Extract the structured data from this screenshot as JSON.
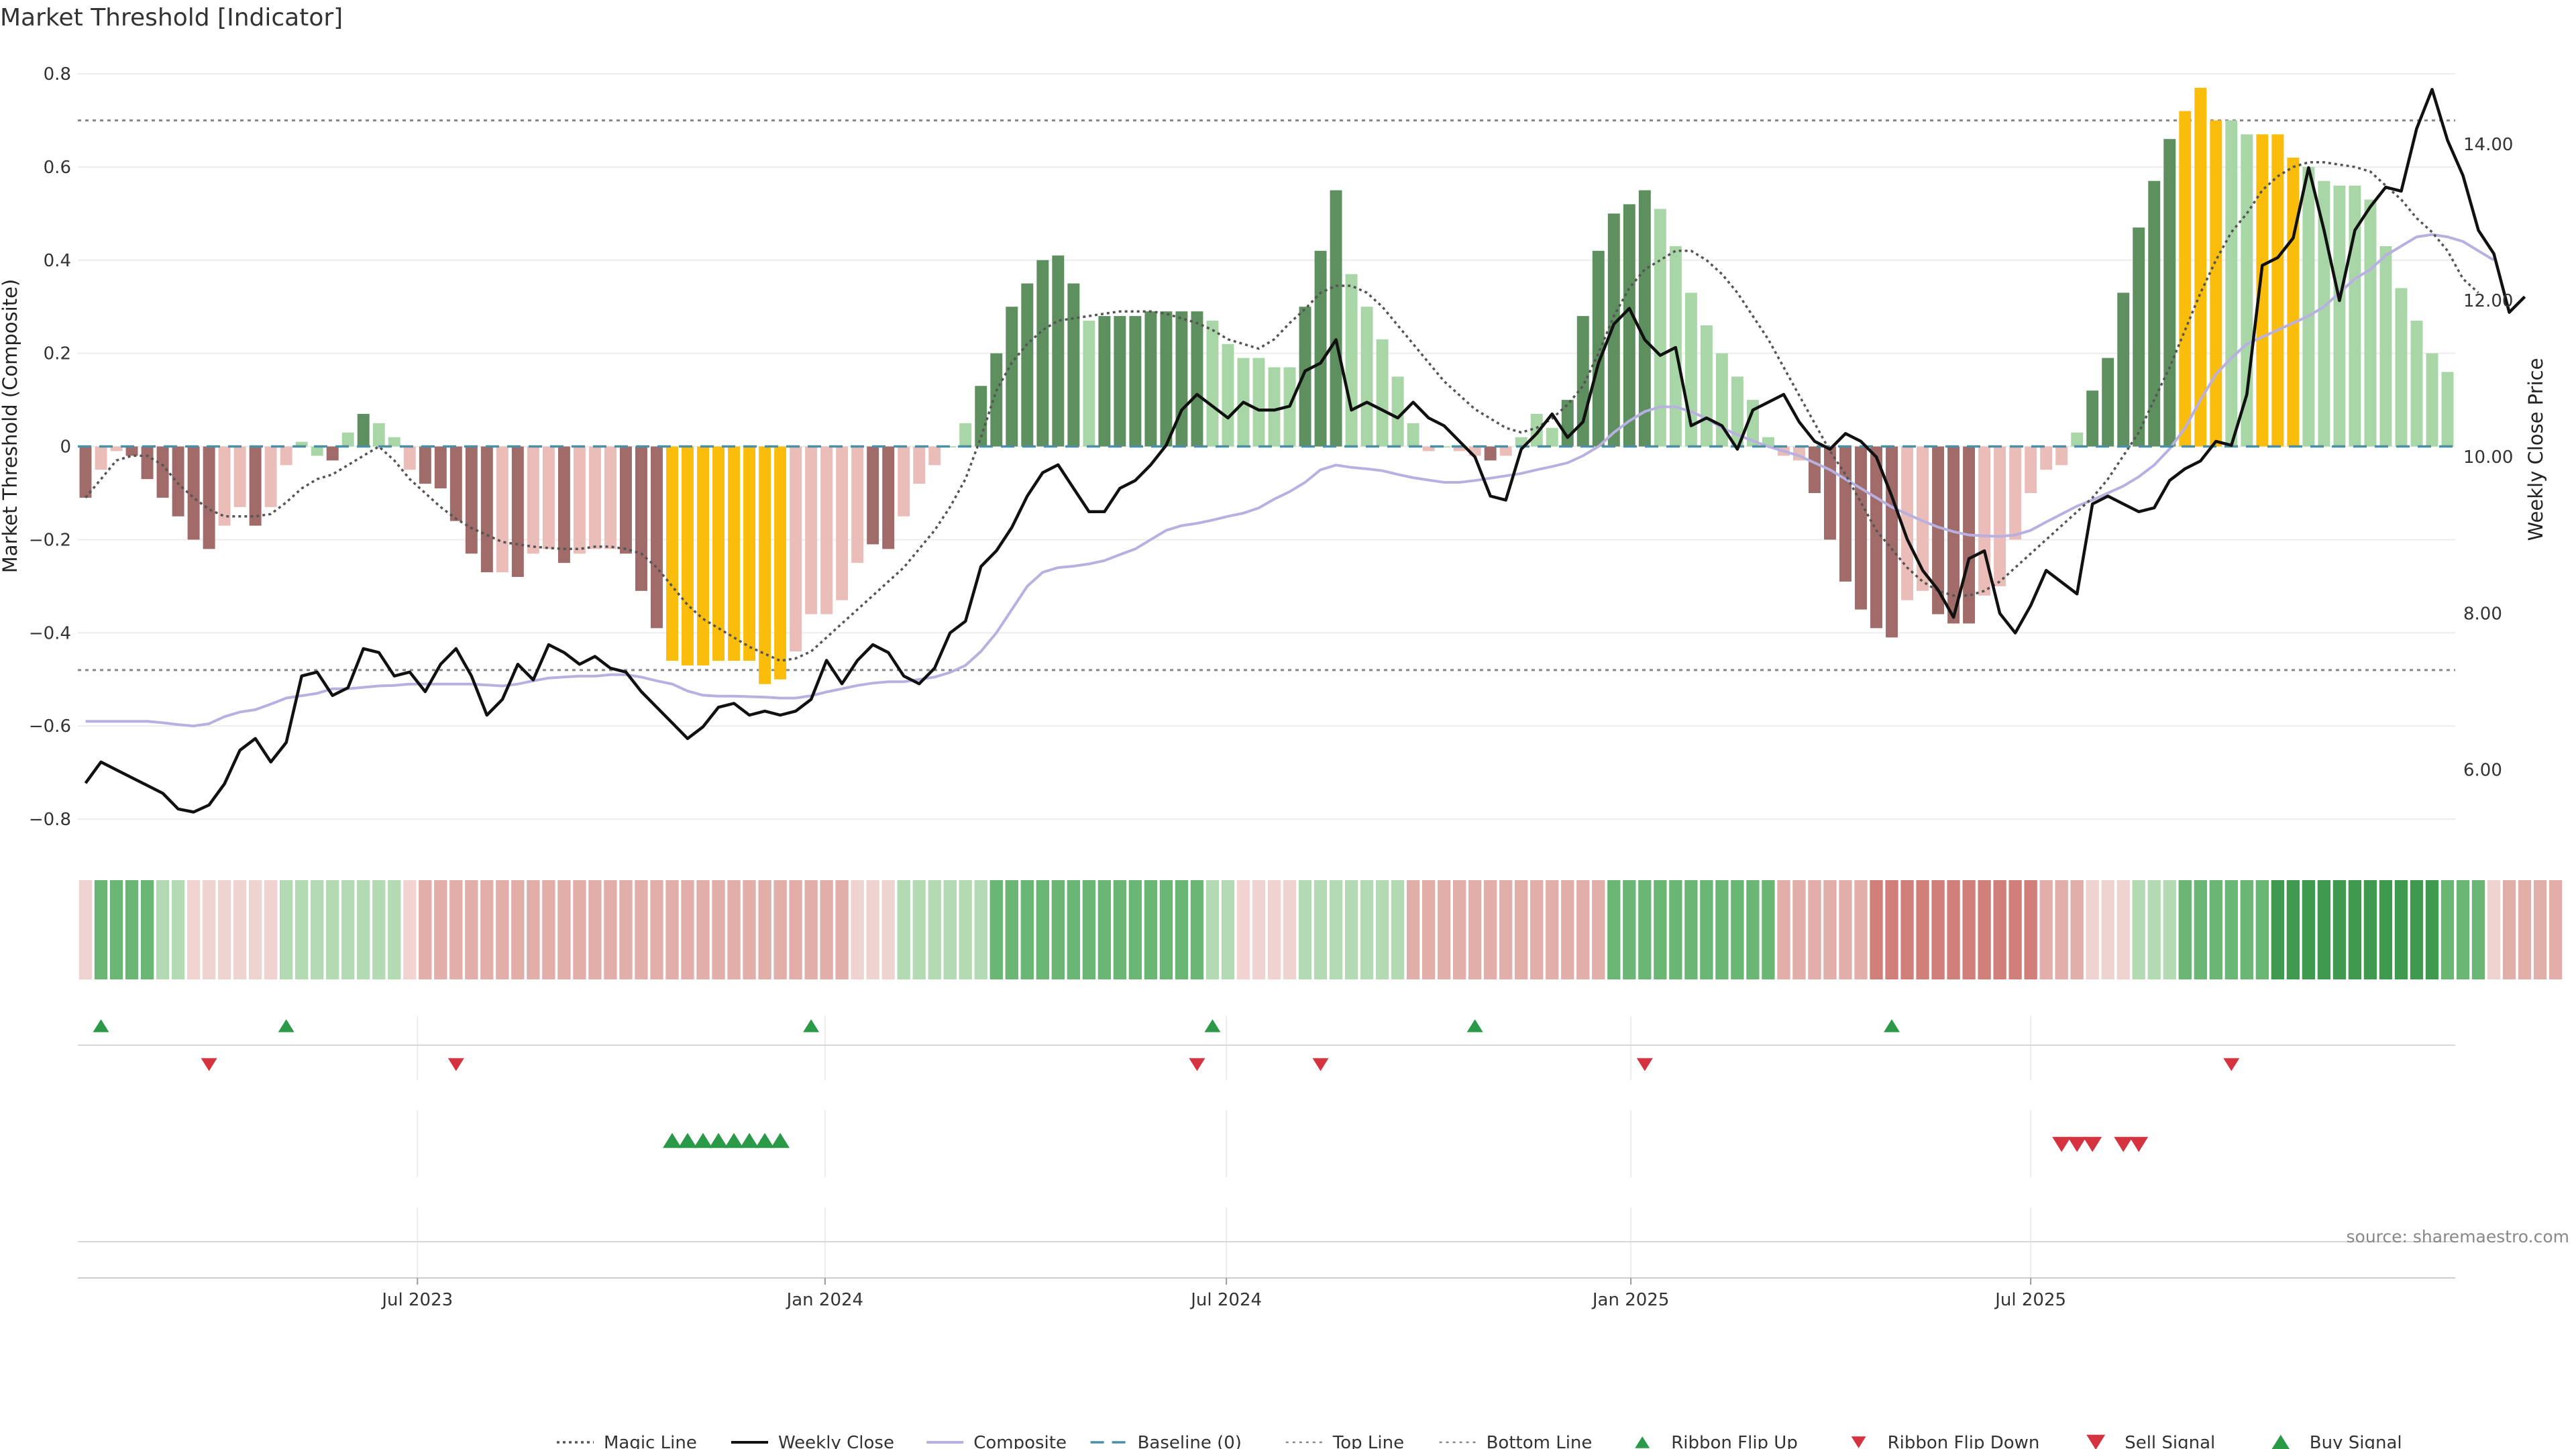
{
  "colors": {
    "strong_green": "#5e8f5e",
    "light_green": "#a9d6a6",
    "strong_red": "#a06b68",
    "light_red": "#ebbdb8",
    "extreme": "#fbbd0b",
    "weekly_close": "#111111",
    "composite": "#b7b0e0",
    "magic": "#555555",
    "baseline": "#4a8fa4",
    "threshold": "#888888",
    "buy": "#2a9a48",
    "sell": "#d63341",
    "grid": "#ececec",
    "text": "#333333",
    "source": "#888888"
  },
  "chart_data": {
    "type": "bar",
    "title": "Market Threshold [Indicator]",
    "ylabel": "Market Threshold (Composite)",
    "y2label": "Weekly Close Price",
    "ylim": [
      -0.82,
      0.8
    ],
    "yticks": [
      0.8,
      0.6,
      0.4,
      0.2,
      0,
      -0.2,
      -0.4,
      -0.6,
      -0.8
    ],
    "ytick_labels": [
      "0.8",
      "0.6",
      "0.4",
      "0.2",
      "0",
      "−0.2",
      "−0.4",
      "−0.6",
      "−0.8"
    ],
    "y2lim": [
      5.25,
      14.9
    ],
    "y2ticks": [
      6,
      8,
      10,
      12,
      14
    ],
    "y2tick_labels": [
      "6.00",
      "8.00",
      "10.00",
      "12.00",
      "14.00"
    ],
    "x_ticks": [
      {
        "week": 21.5,
        "label": "Jul 2023"
      },
      {
        "week": 47.9,
        "label": "Jan 2024"
      },
      {
        "week": 73.9,
        "label": "Jul 2024"
      },
      {
        "week": 100.1,
        "label": "Jan 2025"
      },
      {
        "week": 126.0,
        "label": "Jul 2025"
      }
    ],
    "top_line": 0.7,
    "bottom_line": -0.48,
    "bars": [
      -0.11,
      -0.05,
      -0.01,
      -0.02,
      -0.07,
      -0.11,
      -0.15,
      -0.2,
      -0.22,
      -0.17,
      -0.13,
      -0.17,
      -0.13,
      -0.04,
      0.01,
      -0.02,
      -0.03,
      0.03,
      0.07,
      0.05,
      0.02,
      -0.05,
      -0.08,
      -0.09,
      -0.16,
      -0.23,
      -0.27,
      -0.27,
      -0.28,
      -0.23,
      -0.22,
      -0.25,
      -0.23,
      -0.22,
      -0.22,
      -0.23,
      -0.31,
      -0.39,
      -0.46,
      -0.47,
      -0.47,
      -0.46,
      -0.46,
      -0.46,
      -0.51,
      -0.5,
      -0.44,
      -0.36,
      -0.36,
      -0.33,
      -0.25,
      -0.21,
      -0.22,
      -0.15,
      -0.08,
      -0.04,
      0.0,
      0.05,
      0.13,
      0.2,
      0.3,
      0.35,
      0.4,
      0.41,
      0.35,
      0.27,
      0.28,
      0.28,
      0.28,
      0.29,
      0.29,
      0.29,
      0.29,
      0.27,
      0.22,
      0.19,
      0.19,
      0.17,
      0.17,
      0.3,
      0.42,
      0.55,
      0.37,
      0.3,
      0.23,
      0.15,
      0.05,
      -0.01,
      0.0,
      -0.01,
      -0.02,
      -0.03,
      -0.02,
      0.02,
      0.07,
      0.04,
      0.1,
      0.28,
      0.42,
      0.5,
      0.52,
      0.55,
      0.51,
      0.43,
      0.33,
      0.26,
      0.2,
      0.15,
      0.1,
      0.02,
      -0.02,
      -0.03,
      -0.1,
      -0.2,
      -0.29,
      -0.35,
      -0.39,
      -0.41,
      -0.33,
      -0.31,
      -0.36,
      -0.38,
      -0.38,
      -0.32,
      -0.3,
      -0.2,
      -0.1,
      -0.05,
      -0.04,
      0.03,
      0.12,
      0.19,
      0.33,
      0.47,
      0.57,
      0.66,
      0.72,
      0.77,
      0.7,
      0.7,
      0.67,
      0.67,
      0.67,
      0.62,
      0.6,
      0.57,
      0.56,
      0.56,
      0.53,
      0.43,
      0.34,
      0.27,
      0.2,
      0.16
    ],
    "bar_class": [
      "sr",
      "lr",
      "lr",
      "sr",
      "sr",
      "sr",
      "sr",
      "sr",
      "sr",
      "lr",
      "lr",
      "sr",
      "lr",
      "lr",
      "lg",
      "lg",
      "sr",
      "lg",
      "sg",
      "lg",
      "lg",
      "lr",
      "sr",
      "sr",
      "sr",
      "sr",
      "sr",
      "lr",
      "sr",
      "lr",
      "lr",
      "sr",
      "lr",
      "lr",
      "lr",
      "sr",
      "sr",
      "sr",
      "x",
      "x",
      "x",
      "x",
      "x",
      "x",
      "x",
      "x",
      "lr",
      "lr",
      "lr",
      "lr",
      "lr",
      "sr",
      "sr",
      "lr",
      "lr",
      "lr",
      "lg",
      "lg",
      "sg",
      "sg",
      "sg",
      "sg",
      "sg",
      "sg",
      "sg",
      "lg",
      "sg",
      "sg",
      "sg",
      "sg",
      "sg",
      "sg",
      "sg",
      "lg",
      "lg",
      "lg",
      "lg",
      "lg",
      "lg",
      "sg",
      "sg",
      "sg",
      "lg",
      "lg",
      "lg",
      "lg",
      "lg",
      "lr",
      "lg",
      "lr",
      "lr",
      "sr",
      "lr",
      "lg",
      "lg",
      "lg",
      "sg",
      "sg",
      "sg",
      "sg",
      "sg",
      "sg",
      "lg",
      "lg",
      "lg",
      "lg",
      "lg",
      "lg",
      "lg",
      "lg",
      "lr",
      "lr",
      "sr",
      "sr",
      "sr",
      "sr",
      "sr",
      "sr",
      "lr",
      "lr",
      "sr",
      "sr",
      "sr",
      "lr",
      "lr",
      "lr",
      "lr",
      "lr",
      "lr",
      "lg",
      "sg",
      "sg",
      "sg",
      "sg",
      "sg",
      "sg",
      "x",
      "x",
      "x",
      "lg",
      "lg",
      "x",
      "x",
      "x",
      "lg",
      "lg",
      "lg",
      "lg",
      "lg",
      "lg",
      "lg",
      "lg",
      "lg",
      "lg",
      "lg"
    ],
    "weekly_close": [
      5.83,
      6.1,
      6.0,
      5.9,
      5.8,
      5.7,
      5.5,
      5.46,
      5.55,
      5.82,
      6.25,
      6.4,
      6.1,
      6.35,
      7.2,
      7.25,
      6.95,
      7.05,
      7.55,
      7.5,
      7.2,
      7.25,
      7.0,
      7.35,
      7.55,
      7.2,
      6.7,
      6.9,
      7.35,
      7.15,
      7.6,
      7.5,
      7.35,
      7.45,
      7.3,
      7.25,
      7.0,
      6.8,
      6.6,
      6.4,
      6.55,
      6.8,
      6.85,
      6.7,
      6.75,
      6.7,
      6.75,
      6.9,
      7.4,
      7.1,
      7.4,
      7.6,
      7.5,
      7.2,
      7.1,
      7.3,
      7.75,
      7.9,
      8.6,
      8.8,
      9.1,
      9.5,
      9.8,
      9.9,
      9.6,
      9.3,
      9.3,
      9.6,
      9.7,
      9.9,
      10.15,
      10.6,
      10.8,
      10.65,
      10.5,
      10.7,
      10.6,
      10.6,
      10.65,
      11.1,
      11.2,
      11.5,
      10.6,
      10.7,
      10.6,
      10.5,
      10.7,
      10.5,
      10.4,
      10.2,
      10.0,
      9.5,
      9.45,
      10.1,
      10.3,
      10.55,
      10.25,
      10.45,
      11.2,
      11.7,
      11.9,
      11.5,
      11.3,
      11.4,
      10.4,
      10.5,
      10.4,
      10.1,
      10.6,
      10.7,
      10.8,
      10.45,
      10.2,
      10.1,
      10.3,
      10.2,
      10.0,
      9.5,
      8.95,
      8.55,
      8.3,
      7.95,
      8.7,
      8.8,
      8.0,
      7.75,
      8.1,
      8.55,
      8.4,
      8.25,
      9.4,
      9.5,
      9.4,
      9.3,
      9.35,
      9.7,
      9.85,
      9.95,
      10.2,
      10.15,
      10.8,
      12.45,
      12.55,
      12.8,
      13.7,
      12.9,
      12.0,
      12.9,
      13.2,
      13.45,
      13.4,
      14.2,
      14.7,
      14.05,
      13.6,
      12.9,
      12.6,
      11.85,
      12.05
    ],
    "composite": [
      -0.59,
      -0.59,
      -0.59,
      -0.59,
      -0.59,
      -0.593,
      -0.597,
      -0.6,
      -0.595,
      -0.58,
      -0.57,
      -0.565,
      -0.553,
      -0.54,
      -0.535,
      -0.53,
      -0.52,
      -0.52,
      -0.517,
      -0.514,
      -0.513,
      -0.51,
      -0.51,
      -0.51,
      -0.51,
      -0.51,
      -0.512,
      -0.514,
      -0.51,
      -0.503,
      -0.497,
      -0.495,
      -0.493,
      -0.493,
      -0.49,
      -0.49,
      -0.495,
      -0.503,
      -0.51,
      -0.525,
      -0.534,
      -0.536,
      -0.536,
      -0.537,
      -0.538,
      -0.54,
      -0.54,
      -0.535,
      -0.527,
      -0.52,
      -0.513,
      -0.508,
      -0.505,
      -0.505,
      -0.5,
      -0.495,
      -0.485,
      -0.47,
      -0.44,
      -0.4,
      -0.35,
      -0.3,
      -0.27,
      -0.26,
      -0.257,
      -0.252,
      -0.245,
      -0.232,
      -0.22,
      -0.2,
      -0.18,
      -0.17,
      -0.165,
      -0.158,
      -0.15,
      -0.143,
      -0.132,
      -0.113,
      -0.097,
      -0.077,
      -0.05,
      -0.04,
      -0.045,
      -0.048,
      -0.052,
      -0.06,
      -0.067,
      -0.072,
      -0.077,
      -0.077,
      -0.073,
      -0.068,
      -0.063,
      -0.058,
      -0.05,
      -0.043,
      -0.035,
      -0.02,
      0.0,
      0.03,
      0.055,
      0.075,
      0.085,
      0.085,
      0.075,
      0.06,
      0.04,
      0.025,
      0.012,
      0.0,
      -0.01,
      -0.02,
      -0.035,
      -0.05,
      -0.07,
      -0.09,
      -0.11,
      -0.13,
      -0.145,
      -0.16,
      -0.173,
      -0.183,
      -0.19,
      -0.192,
      -0.193,
      -0.19,
      -0.18,
      -0.162,
      -0.145,
      -0.128,
      -0.115,
      -0.1,
      -0.085,
      -0.065,
      -0.04,
      -0.005,
      0.04,
      0.1,
      0.155,
      0.19,
      0.22,
      0.235,
      0.25,
      0.265,
      0.28,
      0.3,
      0.33,
      0.36,
      0.38,
      0.41,
      0.43,
      0.45,
      0.455,
      0.45,
      0.44,
      0.42,
      0.4
    ],
    "magic": [
      -0.11,
      -0.07,
      -0.03,
      -0.02,
      -0.02,
      -0.04,
      -0.08,
      -0.11,
      -0.135,
      -0.15,
      -0.15,
      -0.15,
      -0.145,
      -0.12,
      -0.09,
      -0.07,
      -0.06,
      -0.04,
      -0.02,
      0.0,
      -0.03,
      -0.07,
      -0.1,
      -0.13,
      -0.155,
      -0.175,
      -0.19,
      -0.205,
      -0.21,
      -0.215,
      -0.218,
      -0.22,
      -0.22,
      -0.215,
      -0.215,
      -0.22,
      -0.23,
      -0.26,
      -0.3,
      -0.34,
      -0.37,
      -0.39,
      -0.41,
      -0.43,
      -0.445,
      -0.46,
      -0.455,
      -0.44,
      -0.41,
      -0.38,
      -0.35,
      -0.32,
      -0.29,
      -0.26,
      -0.22,
      -0.18,
      -0.13,
      -0.07,
      0.02,
      0.12,
      0.18,
      0.22,
      0.25,
      0.27,
      0.275,
      0.28,
      0.285,
      0.29,
      0.29,
      0.29,
      0.285,
      0.275,
      0.265,
      0.25,
      0.23,
      0.22,
      0.21,
      0.23,
      0.265,
      0.295,
      0.33,
      0.345,
      0.345,
      0.33,
      0.3,
      0.26,
      0.22,
      0.18,
      0.14,
      0.11,
      0.08,
      0.06,
      0.04,
      0.03,
      0.04,
      0.06,
      0.09,
      0.13,
      0.2,
      0.28,
      0.34,
      0.38,
      0.4,
      0.42,
      0.42,
      0.4,
      0.37,
      0.33,
      0.28,
      0.23,
      0.17,
      0.11,
      0.05,
      -0.01,
      -0.06,
      -0.12,
      -0.18,
      -0.22,
      -0.26,
      -0.29,
      -0.31,
      -0.32,
      -0.32,
      -0.31,
      -0.29,
      -0.26,
      -0.23,
      -0.2,
      -0.17,
      -0.14,
      -0.11,
      -0.07,
      -0.02,
      0.03,
      0.1,
      0.17,
      0.25,
      0.33,
      0.4,
      0.46,
      0.5,
      0.55,
      0.58,
      0.6,
      0.61,
      0.61,
      0.605,
      0.6,
      0.59,
      0.56,
      0.53,
      0.49,
      0.46,
      0.42,
      0.36,
      0.33
    ],
    "ribbon_levels": [
      -1,
      2,
      2,
      2,
      2,
      1,
      1,
      0,
      -1,
      -1,
      -1,
      -1,
      -1,
      1,
      1,
      1,
      1,
      1,
      1,
      1,
      1,
      0,
      -2,
      -2,
      -2,
      -2,
      -2,
      -2,
      -2,
      -2,
      -2,
      -2,
      -2,
      -2,
      -2,
      -2,
      -2,
      -2,
      -2,
      -2,
      -2,
      -2,
      -2,
      -2,
      -2,
      -2,
      -2,
      -2,
      -2,
      -2,
      -1,
      -1,
      -1,
      1,
      1,
      1,
      1,
      1,
      1,
      2,
      2,
      2,
      2,
      2,
      2,
      2,
      2,
      2,
      2,
      2,
      2,
      2,
      2,
      1,
      1,
      0,
      -1,
      -1,
      -1,
      1,
      1,
      1,
      1,
      1,
      1,
      1,
      -2,
      -2,
      -2,
      -2,
      -2,
      -2,
      -2,
      -2,
      -2,
      -2,
      -2,
      -2,
      -2,
      2,
      2,
      2,
      2,
      2,
      2,
      2,
      2,
      2,
      2,
      2,
      -2,
      -2,
      -2,
      -2,
      -2,
      -2,
      -3,
      -3,
      -3,
      -3,
      -3,
      -3,
      -3,
      -3,
      -3,
      -3,
      -3,
      -2,
      -2,
      -2,
      -1,
      -1,
      -1,
      1,
      1,
      1,
      2,
      2,
      2,
      2,
      2,
      2,
      3,
      3,
      3,
      3,
      3,
      3,
      3,
      3,
      3,
      3,
      3,
      2,
      2,
      2,
      -1,
      -2,
      -2,
      -2,
      -2
    ],
    "ribbon_flip_up": [
      1,
      13,
      47,
      73,
      90,
      117
    ],
    "ribbon_flip_down": [
      8,
      24,
      72,
      80,
      101,
      139
    ],
    "buy_signal": [
      38,
      39,
      40,
      41,
      42,
      43,
      44,
      45
    ],
    "sell_signal": [
      128,
      129,
      130,
      132,
      133
    ],
    "legend": [
      {
        "label": "Magic Line",
        "kind": "dotted-line"
      },
      {
        "label": "Weekly Close",
        "kind": "solid-line"
      },
      {
        "label": "Composite",
        "kind": "composite-line"
      },
      {
        "label": "Baseline (0)",
        "kind": "dashed-line"
      },
      {
        "label": "Top Line",
        "kind": "thin-dotted"
      },
      {
        "label": "Bottom Line",
        "kind": "thin-dotted"
      },
      {
        "label": "Ribbon Flip Up",
        "kind": "tri-up-small"
      },
      {
        "label": "Ribbon Flip Down",
        "kind": "tri-down-small"
      },
      {
        "label": "Sell Signal",
        "kind": "tri-down-big"
      },
      {
        "label": "Buy Signal",
        "kind": "tri-up-big"
      }
    ],
    "source": "source: sharemaestro.com"
  }
}
